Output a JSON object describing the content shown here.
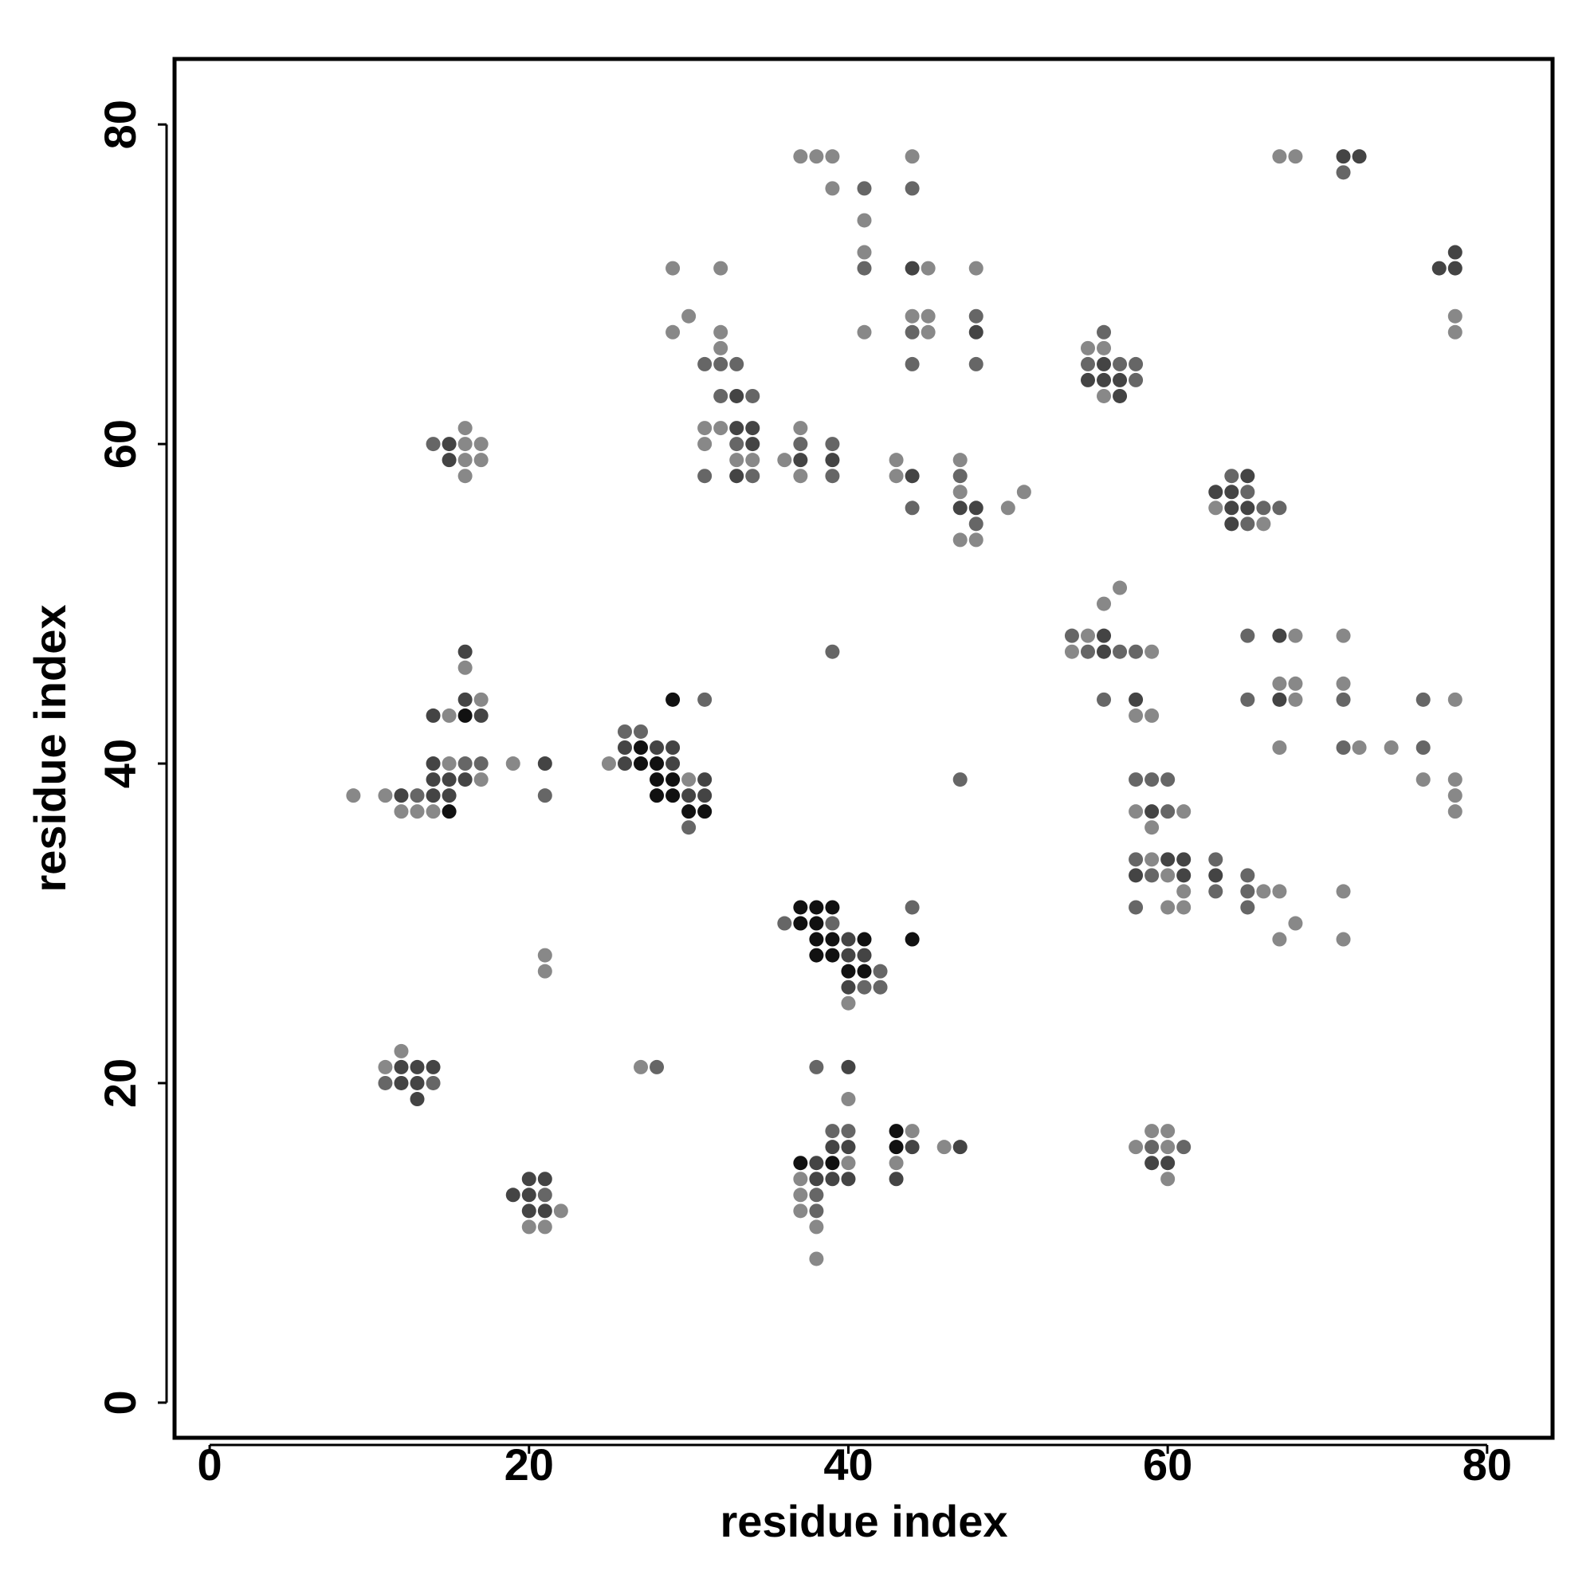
{
  "chart_data": {
    "type": "scatter",
    "xlabel": "residue index",
    "ylabel": "residue index",
    "xlim": [
      -2.2,
      84.1
    ],
    "ylim": [
      -2.2,
      84.1
    ],
    "xticks": [
      0,
      20,
      40,
      60,
      80
    ],
    "yticks": [
      0,
      20,
      40,
      60,
      80
    ],
    "grid": false,
    "series": [
      {
        "color": "#888888",
        "x": [
          37,
          38,
          39,
          44,
          67,
          68,
          39,
          41,
          41,
          29,
          32,
          45,
          48,
          30,
          44,
          45,
          78,
          29,
          32,
          41,
          45,
          78,
          32,
          55,
          56,
          56,
          16,
          31,
          32,
          37,
          16,
          17,
          31,
          16,
          17,
          33,
          34,
          36,
          43,
          47,
          16,
          37,
          43,
          47,
          51,
          50,
          63,
          66,
          47,
          48,
          57,
          56,
          55,
          68,
          71,
          54,
          59,
          16,
          67,
          68,
          71,
          17,
          68,
          78,
          15,
          58,
          59,
          67,
          72,
          74,
          15,
          19,
          25,
          17,
          30,
          76,
          78,
          9,
          11,
          78,
          12,
          13,
          14,
          58,
          61,
          78,
          59,
          59,
          60,
          61,
          66,
          67,
          71,
          60,
          61,
          68,
          67,
          71,
          21,
          21,
          40,
          12,
          11,
          27,
          40,
          44,
          59,
          60,
          46,
          58,
          60,
          40,
          43,
          37,
          60,
          37,
          22,
          37,
          20,
          21,
          38,
          38
        ],
        "values": [
          78,
          78,
          78,
          78,
          78,
          78,
          76,
          74,
          72,
          71,
          71,
          71,
          71,
          68,
          68,
          68,
          68,
          67,
          67,
          67,
          67,
          67,
          66,
          66,
          66,
          63,
          61,
          61,
          61,
          61,
          60,
          60,
          60,
          59,
          59,
          59,
          59,
          59,
          59,
          59,
          58,
          58,
          58,
          57,
          57,
          56,
          56,
          55,
          54,
          54,
          51,
          50,
          48,
          48,
          48,
          47,
          47,
          46,
          45,
          45,
          45,
          44,
          44,
          44,
          43,
          43,
          43,
          41,
          41,
          41,
          40,
          40,
          40,
          39,
          39,
          39,
          39,
          38,
          38,
          38,
          37,
          37,
          37,
          37,
          37,
          37,
          36,
          34,
          33,
          32,
          32,
          32,
          32,
          31,
          31,
          30,
          29,
          29,
          28,
          27,
          25,
          22,
          21,
          21,
          19,
          17,
          17,
          17,
          16,
          16,
          16,
          15,
          15,
          14,
          14,
          13,
          12,
          12,
          11,
          11,
          11,
          9
        ]
      },
      {
        "color": "#666666",
        "x": [
          71,
          41,
          44,
          41,
          48,
          44,
          56,
          31,
          32,
          33,
          44,
          48,
          55,
          57,
          58,
          58,
          32,
          34,
          14,
          33,
          37,
          39,
          31,
          34,
          39,
          47,
          65,
          64,
          44,
          66,
          67,
          48,
          65,
          54,
          65,
          39,
          55,
          57,
          58,
          56,
          31,
          65,
          71,
          76,
          26,
          27,
          71,
          76,
          16,
          17,
          47,
          58,
          59,
          60,
          13,
          21,
          60,
          30,
          58,
          63,
          59,
          65,
          63,
          65,
          44,
          58,
          65,
          36,
          39,
          42,
          41,
          42,
          38,
          28,
          11,
          14,
          39,
          40,
          59,
          61,
          21,
          38,
          38
        ],
        "values": [
          77,
          76,
          76,
          71,
          68,
          67,
          67,
          65,
          65,
          65,
          65,
          65,
          65,
          65,
          65,
          64,
          63,
          63,
          60,
          60,
          60,
          60,
          58,
          58,
          58,
          58,
          57,
          58,
          56,
          56,
          56,
          55,
          55,
          48,
          48,
          47,
          47,
          47,
          47,
          44,
          44,
          44,
          44,
          44,
          42,
          42,
          41,
          41,
          40,
          40,
          39,
          39,
          39,
          39,
          38,
          38,
          37,
          36,
          34,
          34,
          33,
          33,
          32,
          32,
          31,
          31,
          31,
          30,
          30,
          27,
          26,
          26,
          21,
          21,
          20,
          20,
          17,
          17,
          16,
          16,
          13,
          13,
          12
        ]
      },
      {
        "color": "#444444",
        "x": [
          71,
          72,
          78,
          44,
          77,
          78,
          48,
          56,
          55,
          56,
          57,
          33,
          57,
          33,
          34,
          15,
          34,
          15,
          37,
          39,
          33,
          44,
          63,
          64,
          65,
          47,
          48,
          64,
          65,
          64,
          56,
          67,
          16,
          56,
          16,
          58,
          67,
          14,
          17,
          26,
          28,
          29,
          14,
          21,
          26,
          29,
          14,
          15,
          16,
          31,
          12,
          14,
          15,
          30,
          31,
          59,
          60,
          61,
          58,
          61,
          63,
          40,
          40,
          41,
          40,
          12,
          13,
          14,
          40,
          12,
          13,
          13,
          39,
          40,
          44,
          47,
          38,
          59,
          60,
          20,
          21,
          38,
          39,
          40,
          43,
          19,
          20,
          20,
          21
        ],
        "values": [
          78,
          78,
          72,
          71,
          71,
          71,
          67,
          65,
          64,
          64,
          64,
          63,
          63,
          61,
          61,
          60,
          60,
          59,
          59,
          59,
          58,
          58,
          57,
          57,
          58,
          56,
          56,
          56,
          56,
          55,
          48,
          48,
          47,
          47,
          44,
          44,
          44,
          43,
          43,
          41,
          41,
          41,
          40,
          40,
          40,
          40,
          39,
          39,
          39,
          39,
          38,
          38,
          38,
          38,
          38,
          37,
          34,
          34,
          33,
          33,
          33,
          29,
          28,
          28,
          26,
          21,
          21,
          21,
          21,
          20,
          20,
          19,
          16,
          16,
          16,
          16,
          15,
          15,
          15,
          14,
          14,
          14,
          14,
          14,
          14,
          13,
          13,
          12,
          12
        ]
      },
      {
        "color": "#111111",
        "x": [
          29,
          16,
          27,
          27,
          28,
          28,
          29,
          28,
          29,
          15,
          30,
          31,
          37,
          38,
          39,
          37,
          38,
          38,
          39,
          41,
          44,
          38,
          39,
          40,
          41,
          43,
          43,
          37,
          39
        ],
        "values": [
          44,
          43,
          41,
          40,
          40,
          39,
          39,
          38,
          38,
          37,
          37,
          37,
          31,
          31,
          31,
          30,
          30,
          29,
          29,
          29,
          29,
          28,
          28,
          27,
          27,
          17,
          16,
          15,
          15
        ]
      }
    ]
  }
}
